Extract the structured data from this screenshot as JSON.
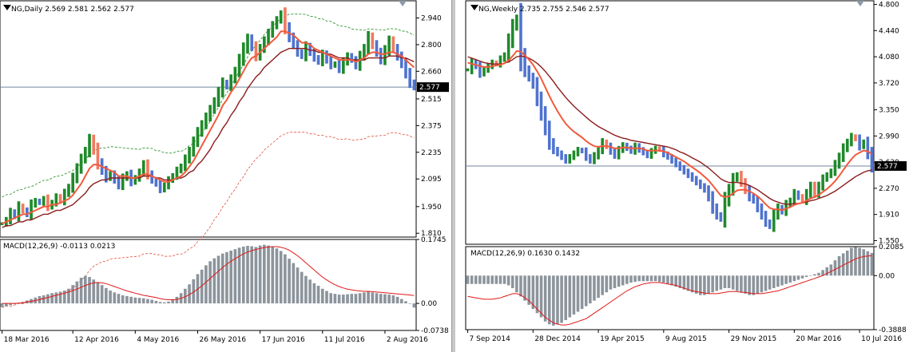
{
  "colors": {
    "bull": "#1f8a2a",
    "bear": "#4f73cf",
    "bear_light": "#f07a60",
    "ma_fast": "#f25a3c",
    "ma_slow": "#8a1c1c",
    "envelope": "#178c17",
    "envelope_low": "#e0503c",
    "macd_hist": "#8c949c",
    "macd_signal": "#e01818",
    "price_line": "#6f86a0",
    "tag_bg": "#000000"
  },
  "chart_data": [
    {
      "type": "candlestick",
      "symbol": "NG",
      "timeframe": "Daily",
      "header": "NG,Daily  2.569 2.581 2.562 2.577",
      "ylim": [
        1.79,
        3.03
      ],
      "y_ticks": [
        "2.940",
        "2.800",
        "2.660",
        "2.515",
        "2.375",
        "2.235",
        "2.095",
        "1.950",
        "1.810"
      ],
      "y_tick_values": [
        2.94,
        2.8,
        2.66,
        2.515,
        2.375,
        2.235,
        2.095,
        1.95,
        1.81
      ],
      "last_price": "2.577",
      "last_price_value": 2.577,
      "x_labels": [
        "18 Mar 2016",
        "12 Apr 2016",
        "4 May 2016",
        "26 May 2016",
        "17 Jun 2016",
        "11 Jul 2016",
        "2 Aug 2016"
      ],
      "x_label_bars": [
        0,
        17,
        32,
        47,
        62,
        77,
        92
      ],
      "bar_count": 100,
      "closes": [
        1.86,
        1.88,
        1.92,
        1.9,
        1.95,
        1.93,
        1.91,
        1.96,
        1.98,
        1.97,
        1.99,
        1.95,
        1.97,
        2.0,
        1.98,
        2.02,
        2.05,
        2.1,
        2.15,
        2.2,
        2.24,
        2.3,
        2.25,
        2.18,
        2.14,
        2.1,
        2.12,
        2.09,
        2.06,
        2.1,
        2.12,
        2.08,
        2.1,
        2.13,
        2.17,
        2.12,
        2.09,
        2.07,
        2.04,
        2.06,
        2.09,
        2.11,
        2.14,
        2.16,
        2.2,
        2.24,
        2.29,
        2.34,
        2.38,
        2.42,
        2.46,
        2.5,
        2.55,
        2.6,
        2.58,
        2.62,
        2.66,
        2.72,
        2.78,
        2.83,
        2.79,
        2.74,
        2.78,
        2.82,
        2.86,
        2.9,
        2.93,
        2.96,
        2.89,
        2.84,
        2.8,
        2.76,
        2.74,
        2.79,
        2.76,
        2.73,
        2.71,
        2.75,
        2.72,
        2.69,
        2.7,
        2.67,
        2.71,
        2.74,
        2.72,
        2.69,
        2.74,
        2.78,
        2.84,
        2.8,
        2.76,
        2.72,
        2.77,
        2.82,
        2.78,
        2.74,
        2.7,
        2.65,
        2.6,
        2.577
      ],
      "ma_fast": [
        1.86,
        1.87,
        1.88,
        1.89,
        1.9,
        1.91,
        1.91,
        1.92,
        1.93,
        1.94,
        1.95,
        1.95,
        1.96,
        1.96,
        1.97,
        1.98,
        1.99,
        2.01,
        2.04,
        2.07,
        2.11,
        2.15,
        2.17,
        2.17,
        2.16,
        2.15,
        2.14,
        2.13,
        2.11,
        2.11,
        2.11,
        2.1,
        2.1,
        2.11,
        2.12,
        2.12,
        2.11,
        2.1,
        2.09,
        2.08,
        2.08,
        2.09,
        2.1,
        2.11,
        2.13,
        2.16,
        2.19,
        2.23,
        2.27,
        2.31,
        2.35,
        2.39,
        2.43,
        2.48,
        2.51,
        2.55,
        2.58,
        2.62,
        2.66,
        2.7,
        2.73,
        2.74,
        2.76,
        2.78,
        2.8,
        2.82,
        2.84,
        2.87,
        2.87,
        2.86,
        2.85,
        2.83,
        2.81,
        2.81,
        2.8,
        2.78,
        2.77,
        2.76,
        2.75,
        2.74,
        2.73,
        2.72,
        2.72,
        2.72,
        2.72,
        2.71,
        2.72,
        2.73,
        2.75,
        2.76,
        2.76,
        2.75,
        2.75,
        2.76,
        2.76,
        2.75,
        2.74,
        2.72,
        2.7,
        2.68
      ],
      "ma_slow": [
        1.84,
        1.85,
        1.85,
        1.86,
        1.87,
        1.87,
        1.88,
        1.88,
        1.89,
        1.9,
        1.91,
        1.91,
        1.92,
        1.93,
        1.93,
        1.94,
        1.95,
        1.96,
        1.98,
        2.0,
        2.02,
        2.05,
        2.07,
        2.08,
        2.09,
        2.09,
        2.1,
        2.1,
        2.1,
        2.1,
        2.1,
        2.1,
        2.1,
        2.1,
        2.11,
        2.11,
        2.11,
        2.1,
        2.1,
        2.09,
        2.09,
        2.09,
        2.1,
        2.1,
        2.11,
        2.13,
        2.14,
        2.17,
        2.19,
        2.22,
        2.25,
        2.29,
        2.32,
        2.36,
        2.39,
        2.43,
        2.46,
        2.5,
        2.53,
        2.57,
        2.6,
        2.63,
        2.65,
        2.68,
        2.7,
        2.72,
        2.74,
        2.76,
        2.77,
        2.78,
        2.78,
        2.78,
        2.78,
        2.78,
        2.77,
        2.77,
        2.76,
        2.76,
        2.75,
        2.75,
        2.74,
        2.73,
        2.73,
        2.73,
        2.72,
        2.72,
        2.72,
        2.72,
        2.73,
        2.73,
        2.73,
        2.73,
        2.73,
        2.74,
        2.74,
        2.74,
        2.73,
        2.73,
        2.72,
        2.71
      ],
      "macd_label": "MACD(12,26,9) -0.0113 0.0213",
      "macd_ylim": [
        -0.0738,
        0.1745
      ],
      "macd_ticks": [
        "0.1745",
        "0.00",
        "-0.0738"
      ],
      "macd_tick_values": [
        0.1745,
        0.0,
        -0.0738
      ],
      "macd_hist": [
        -0.01,
        -0.008,
        -0.005,
        -0.002,
        0.001,
        0.004,
        0.008,
        0.012,
        0.016,
        0.02,
        0.022,
        0.025,
        0.028,
        0.03,
        0.032,
        0.035,
        0.04,
        0.05,
        0.06,
        0.07,
        0.075,
        0.072,
        0.065,
        0.058,
        0.05,
        0.042,
        0.035,
        0.03,
        0.026,
        0.022,
        0.02,
        0.018,
        0.016,
        0.015,
        0.014,
        0.012,
        0.01,
        0.007,
        0.004,
        0.003,
        0.005,
        0.01,
        0.018,
        0.028,
        0.04,
        0.052,
        0.066,
        0.08,
        0.092,
        0.104,
        0.115,
        0.123,
        0.13,
        0.136,
        0.14,
        0.144,
        0.148,
        0.152,
        0.155,
        0.157,
        0.156,
        0.154,
        0.158,
        0.16,
        0.158,
        0.155,
        0.15,
        0.143,
        0.134,
        0.122,
        0.11,
        0.098,
        0.086,
        0.075,
        0.065,
        0.055,
        0.048,
        0.04,
        0.034,
        0.028,
        0.026,
        0.024,
        0.024,
        0.025,
        0.026,
        0.026,
        0.028,
        0.03,
        0.032,
        0.03,
        0.028,
        0.026,
        0.025,
        0.024,
        0.022,
        0.018,
        0.012,
        0.006,
        0.0,
        -0.0113
      ],
      "macd_signal": [
        0.0,
        0.0,
        0.0,
        0.0,
        0.001,
        0.002,
        0.004,
        0.006,
        0.008,
        0.01,
        0.013,
        0.016,
        0.019,
        0.022,
        0.025,
        0.028,
        0.031,
        0.035,
        0.039,
        0.044,
        0.049,
        0.053,
        0.056,
        0.057,
        0.056,
        0.054,
        0.05,
        0.046,
        0.042,
        0.038,
        0.034,
        0.031,
        0.028,
        0.025,
        0.022,
        0.02,
        0.018,
        0.016,
        0.013,
        0.011,
        0.01,
        0.01,
        0.011,
        0.014,
        0.018,
        0.024,
        0.031,
        0.039,
        0.048,
        0.058,
        0.068,
        0.078,
        0.088,
        0.098,
        0.107,
        0.115,
        0.122,
        0.129,
        0.135,
        0.14,
        0.144,
        0.147,
        0.15,
        0.152,
        0.154,
        0.155,
        0.155,
        0.153,
        0.15,
        0.145,
        0.138,
        0.13,
        0.121,
        0.111,
        0.101,
        0.091,
        0.081,
        0.072,
        0.064,
        0.057,
        0.051,
        0.046,
        0.042,
        0.039,
        0.037,
        0.035,
        0.034,
        0.033,
        0.033,
        0.032,
        0.031,
        0.03,
        0.029,
        0.028,
        0.027,
        0.026,
        0.025,
        0.024,
        0.023,
        0.0213
      ]
    },
    {
      "type": "candlestick",
      "symbol": "NG",
      "timeframe": "Weekly",
      "header": "NG,Weekly  2.735 2.755 2.546 2.577",
      "ylim": [
        1.5,
        4.85
      ],
      "y_ticks": [
        "4.800",
        "4.440",
        "4.080",
        "3.720",
        "3.350",
        "2.990",
        "2.630",
        "2.270",
        "1.910",
        "1.550"
      ],
      "y_tick_values": [
        4.8,
        4.44,
        4.08,
        3.72,
        3.35,
        2.99,
        2.63,
        2.27,
        1.91,
        1.55
      ],
      "last_price": "2.577",
      "last_price_value": 2.577,
      "x_labels": [
        "7 Sep 2014",
        "28 Dec 2014",
        "19 Apr 2015",
        "9 Aug 2015",
        "29 Nov 2015",
        "20 Mar 2016",
        "10 Jul 2016"
      ],
      "x_label_bars": [
        0,
        16,
        32,
        48,
        64,
        80,
        96
      ],
      "bar_count": 100,
      "closes": [
        3.9,
        4.0,
        3.95,
        3.85,
        3.9,
        3.95,
        4.0,
        3.98,
        4.05,
        4.1,
        4.3,
        4.5,
        4.6,
        4.1,
        3.9,
        3.8,
        3.7,
        3.5,
        3.3,
        3.1,
        2.9,
        2.8,
        2.75,
        2.7,
        2.65,
        2.7,
        2.75,
        2.8,
        2.78,
        2.7,
        2.65,
        2.72,
        2.8,
        2.9,
        2.85,
        2.78,
        2.72,
        2.8,
        2.86,
        2.82,
        2.78,
        2.85,
        2.8,
        2.76,
        2.72,
        2.78,
        2.82,
        2.8,
        2.74,
        2.7,
        2.65,
        2.6,
        2.55,
        2.5,
        2.45,
        2.4,
        2.35,
        2.3,
        2.25,
        2.15,
        2.0,
        1.9,
        1.85,
        2.1,
        2.25,
        2.4,
        2.45,
        2.35,
        2.25,
        2.15,
        2.1,
        2.0,
        1.9,
        1.8,
        1.75,
        1.9,
        2.0,
        1.95,
        2.05,
        2.1,
        2.2,
        2.15,
        2.1,
        2.2,
        2.3,
        2.2,
        2.3,
        2.4,
        2.45,
        2.5,
        2.6,
        2.7,
        2.82,
        2.9,
        2.98,
        2.95,
        2.85,
        2.9,
        2.75,
        2.577
      ],
      "ma_fast": [
        4.0,
        3.98,
        3.97,
        3.95,
        3.94,
        3.94,
        3.95,
        3.96,
        3.97,
        3.99,
        4.03,
        4.09,
        4.16,
        4.15,
        4.1,
        4.04,
        3.97,
        3.88,
        3.78,
        3.66,
        3.54,
        3.43,
        3.33,
        3.24,
        3.16,
        3.1,
        3.05,
        3.01,
        2.97,
        2.92,
        2.88,
        2.85,
        2.84,
        2.85,
        2.85,
        2.84,
        2.82,
        2.82,
        2.83,
        2.83,
        2.82,
        2.82,
        2.82,
        2.81,
        2.79,
        2.79,
        2.79,
        2.79,
        2.78,
        2.76,
        2.73,
        2.7,
        2.67,
        2.64,
        2.6,
        2.56,
        2.52,
        2.48,
        2.43,
        2.38,
        2.31,
        2.24,
        2.17,
        2.15,
        2.16,
        2.2,
        2.24,
        2.25,
        2.25,
        2.23,
        2.2,
        2.16,
        2.11,
        2.05,
        2.0,
        1.98,
        1.98,
        1.97,
        1.99,
        2.01,
        2.04,
        2.06,
        2.07,
        2.1,
        2.13,
        2.15,
        2.18,
        2.22,
        2.26,
        2.31,
        2.37,
        2.44,
        2.52,
        2.6,
        2.67,
        2.73,
        2.76,
        2.79,
        2.78,
        2.74
      ],
      "ma_slow": [
        4.08,
        4.06,
        4.04,
        4.02,
        4.0,
        3.99,
        3.98,
        3.98,
        3.98,
        3.99,
        4.01,
        4.04,
        4.08,
        4.09,
        4.08,
        4.06,
        4.03,
        3.99,
        3.94,
        3.88,
        3.81,
        3.74,
        3.66,
        3.59,
        3.52,
        3.46,
        3.4,
        3.35,
        3.3,
        3.25,
        3.2,
        3.16,
        3.12,
        3.09,
        3.06,
        3.03,
        3.0,
        2.98,
        2.96,
        2.95,
        2.93,
        2.92,
        2.91,
        2.9,
        2.89,
        2.88,
        2.87,
        2.86,
        2.85,
        2.84,
        2.82,
        2.8,
        2.77,
        2.75,
        2.72,
        2.69,
        2.66,
        2.63,
        2.59,
        2.55,
        2.5,
        2.45,
        2.4,
        2.37,
        2.35,
        2.35,
        2.35,
        2.34,
        2.33,
        2.31,
        2.28,
        2.25,
        2.21,
        2.17,
        2.13,
        2.1,
        2.08,
        2.06,
        2.05,
        2.05,
        2.06,
        2.06,
        2.07,
        2.08,
        2.1,
        2.11,
        2.13,
        2.15,
        2.17,
        2.2,
        2.23,
        2.27,
        2.31,
        2.35,
        2.39,
        2.43,
        2.46,
        2.49,
        2.51,
        2.52
      ],
      "macd_label": "MACD(12,26,9) 0.1630 0.1432",
      "macd_ylim": [
        -0.3888,
        0.2085
      ],
      "macd_ticks": [
        "0.2085",
        "0.00",
        "-0.3888"
      ],
      "macd_tick_values": [
        0.2085,
        0.0,
        -0.3888
      ],
      "macd_hist": [
        -0.06,
        -0.06,
        -0.06,
        -0.06,
        -0.06,
        -0.06,
        -0.06,
        -0.06,
        -0.06,
        -0.06,
        -0.07,
        -0.09,
        -0.12,
        -0.15,
        -0.18,
        -0.21,
        -0.24,
        -0.27,
        -0.3,
        -0.33,
        -0.35,
        -0.36,
        -0.35,
        -0.34,
        -0.32,
        -0.3,
        -0.28,
        -0.26,
        -0.24,
        -0.22,
        -0.2,
        -0.18,
        -0.16,
        -0.14,
        -0.12,
        -0.1,
        -0.09,
        -0.08,
        -0.07,
        -0.06,
        -0.05,
        -0.045,
        -0.04,
        -0.04,
        -0.04,
        -0.04,
        -0.04,
        -0.045,
        -0.05,
        -0.06,
        -0.07,
        -0.08,
        -0.09,
        -0.1,
        -0.11,
        -0.12,
        -0.13,
        -0.14,
        -0.14,
        -0.13,
        -0.12,
        -0.11,
        -0.1,
        -0.09,
        -0.09,
        -0.1,
        -0.11,
        -0.12,
        -0.13,
        -0.14,
        -0.14,
        -0.13,
        -0.12,
        -0.11,
        -0.1,
        -0.09,
        -0.08,
        -0.07,
        -0.06,
        -0.05,
        -0.04,
        -0.03,
        -0.02,
        -0.01,
        0.0,
        0.01,
        0.02,
        0.04,
        0.06,
        0.08,
        0.11,
        0.14,
        0.16,
        0.18,
        0.2,
        0.205,
        0.2,
        0.19,
        0.175,
        0.163
      ],
      "macd_signal": [
        -0.15,
        -0.155,
        -0.16,
        -0.165,
        -0.17,
        -0.17,
        -0.17,
        -0.165,
        -0.16,
        -0.15,
        -0.14,
        -0.13,
        -0.13,
        -0.14,
        -0.16,
        -0.18,
        -0.21,
        -0.24,
        -0.27,
        -0.3,
        -0.32,
        -0.34,
        -0.35,
        -0.355,
        -0.355,
        -0.35,
        -0.34,
        -0.33,
        -0.32,
        -0.31,
        -0.29,
        -0.27,
        -0.25,
        -0.23,
        -0.21,
        -0.19,
        -0.17,
        -0.15,
        -0.13,
        -0.11,
        -0.095,
        -0.08,
        -0.07,
        -0.06,
        -0.055,
        -0.05,
        -0.05,
        -0.05,
        -0.055,
        -0.06,
        -0.065,
        -0.07,
        -0.08,
        -0.09,
        -0.1,
        -0.11,
        -0.115,
        -0.12,
        -0.125,
        -0.13,
        -0.13,
        -0.13,
        -0.125,
        -0.12,
        -0.115,
        -0.115,
        -0.115,
        -0.12,
        -0.12,
        -0.125,
        -0.13,
        -0.13,
        -0.13,
        -0.125,
        -0.12,
        -0.115,
        -0.11,
        -0.1,
        -0.09,
        -0.08,
        -0.07,
        -0.06,
        -0.05,
        -0.04,
        -0.03,
        -0.02,
        -0.01,
        0.0,
        0.015,
        0.03,
        0.045,
        0.06,
        0.075,
        0.09,
        0.105,
        0.12,
        0.13,
        0.137,
        0.141,
        0.143
      ]
    }
  ]
}
